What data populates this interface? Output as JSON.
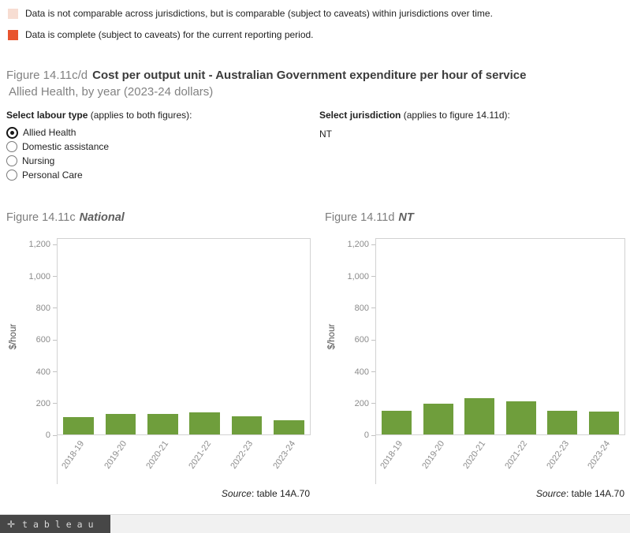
{
  "legend": {
    "items": [
      {
        "swatch_color": "#f7ddd2",
        "label": "Data is not comparable across jurisdictions, but is comparable (subject to caveats) within jurisdictions over time."
      },
      {
        "swatch_color": "#e8542e",
        "label": "Data is complete (subject to caveats) for the current reporting period."
      }
    ]
  },
  "title": {
    "figure_ref": "Figure 14.11c/d",
    "main": "Cost per output unit - Australian Government expenditure per hour of service",
    "subtitle": "Allied Health, by year (2023-24 dollars)"
  },
  "controls": {
    "labour_type": {
      "label_strong": "Select labour type",
      "label_note": " (applies to both figures):",
      "options": [
        {
          "label": "Allied Health",
          "selected": true
        },
        {
          "label": "Domestic assistance",
          "selected": false
        },
        {
          "label": "Nursing",
          "selected": false
        },
        {
          "label": "Personal Care",
          "selected": false
        }
      ]
    },
    "jurisdiction": {
      "label_strong": "Select jurisdiction",
      "label_note": " (applies to figure 14.11d):",
      "value": "NT"
    }
  },
  "chart_data": [
    {
      "type": "bar",
      "title_prefix": "Figure 14.11c",
      "title_italic": "National",
      "categories": [
        "2018-19",
        "2019-20",
        "2020-21",
        "2021-22",
        "2022-23",
        "2023-24"
      ],
      "values": [
        110,
        131,
        131,
        138,
        117,
        90
      ],
      "ylabel": "$/hour",
      "ylim": [
        0,
        1200
      ],
      "yticks": [
        0,
        200,
        400,
        600,
        800,
        1000,
        1200
      ],
      "grid": false,
      "legend_position": "none",
      "bar_color": "#6f9e3c",
      "source_prefix": "Source",
      "source_suffix": ": table 14A.70"
    },
    {
      "type": "bar",
      "title_prefix": "Figure 14.11d",
      "title_italic": "NT",
      "categories": [
        "2018-19",
        "2019-20",
        "2020-21",
        "2021-22",
        "2022-23",
        "2023-24"
      ],
      "values": [
        150,
        196,
        232,
        210,
        152,
        147
      ],
      "ylabel": "$/hour",
      "ylim": [
        0,
        1200
      ],
      "yticks": [
        0,
        200,
        400,
        600,
        800,
        1000,
        1200
      ],
      "grid": false,
      "legend_position": "none",
      "bar_color": "#6f9e3c",
      "source_prefix": "Source",
      "source_suffix": ": table 14A.70"
    }
  ],
  "footer": {
    "brand_glyph": "✛",
    "brand_word": "tableau"
  }
}
